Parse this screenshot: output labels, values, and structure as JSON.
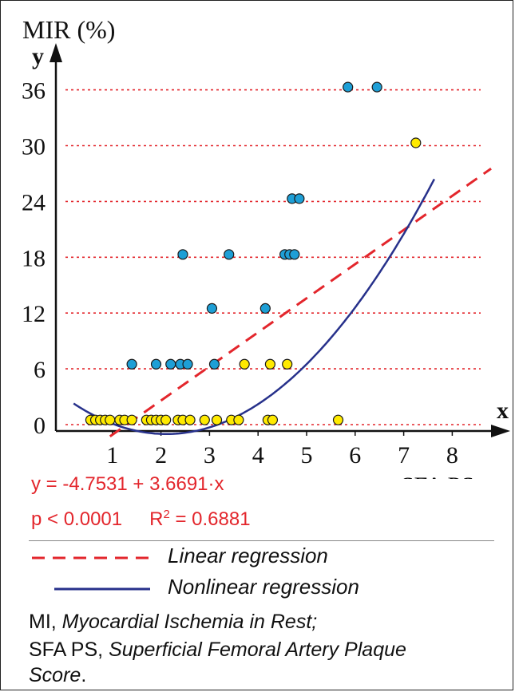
{
  "chart_data": {
    "type": "scatter",
    "y_axis_title": "MIR (%)",
    "y_axis_letter": "y",
    "x_axis_letter": "x",
    "x_axis_title": "SFA PS",
    "xlim": [
      0,
      9
    ],
    "ylim": [
      0,
      40
    ],
    "x_ticks": [
      "1",
      "2",
      "3",
      "4",
      "5",
      "6",
      "7",
      "8"
    ],
    "y_ticks": [
      "0",
      "6",
      "12",
      "18",
      "24",
      "30",
      "36"
    ],
    "gridlines": "dotted horizontal at y ticks",
    "series": [
      {
        "color": "#1e9fd6",
        "marker": "circle",
        "points": [
          [
            1.4,
            6.5
          ],
          [
            1.9,
            6.5
          ],
          [
            2.2,
            6.5
          ],
          [
            2.4,
            6.5
          ],
          [
            2.55,
            6.5
          ],
          [
            3.1,
            6.5
          ],
          [
            2.45,
            18.3
          ],
          [
            3.05,
            12.5
          ],
          [
            3.4,
            18.3
          ],
          [
            4.15,
            12.5
          ],
          [
            4.55,
            18.3
          ],
          [
            4.65,
            18.3
          ],
          [
            4.75,
            18.3
          ],
          [
            4.7,
            24.3
          ],
          [
            4.85,
            24.3
          ],
          [
            5.85,
            36.3
          ],
          [
            6.45,
            36.3
          ]
        ]
      },
      {
        "color": "#ffea00",
        "marker": "circle",
        "points": [
          [
            0.55,
            0.5
          ],
          [
            0.65,
            0.5
          ],
          [
            0.75,
            0.5
          ],
          [
            0.85,
            0.5
          ],
          [
            0.95,
            0.5
          ],
          [
            1.15,
            0.5
          ],
          [
            1.25,
            0.5
          ],
          [
            1.4,
            0.5
          ],
          [
            1.7,
            0.5
          ],
          [
            1.8,
            0.5
          ],
          [
            1.9,
            0.5
          ],
          [
            2.0,
            0.5
          ],
          [
            2.1,
            0.5
          ],
          [
            2.35,
            0.5
          ],
          [
            2.45,
            0.5
          ],
          [
            2.6,
            0.5
          ],
          [
            2.9,
            0.5
          ],
          [
            3.15,
            0.5
          ],
          [
            3.45,
            0.5
          ],
          [
            3.6,
            0.5
          ],
          [
            4.2,
            0.5
          ],
          [
            4.3,
            0.5
          ],
          [
            5.65,
            0.5
          ],
          [
            3.72,
            6.5
          ],
          [
            4.25,
            6.5
          ],
          [
            4.6,
            6.5
          ],
          [
            7.25,
            30.3
          ]
        ]
      }
    ],
    "lines": [
      {
        "name": "Linear regression",
        "style": "dashed",
        "color": "#e3262c",
        "intercept": -4.7531,
        "slope": 3.6691
      },
      {
        "name": "Nonlinear regression",
        "style": "solid",
        "color": "#27318b",
        "quadratic": [
          3.0,
          -3.8,
          0.9
        ]
      }
    ],
    "equation": "y = -4.7531 + 3.6691·x",
    "p_value": "p < 0.0001",
    "r2_prefix": "R",
    "r2_sup": "2",
    "r2_value": " = 0.6881"
  },
  "legend": {
    "linear": "Linear regression",
    "nonlinear": "Nonlinear regression"
  },
  "notes": {
    "line1_abbr": "MI, ",
    "line1_text": "Myocardial Ischemia in Rest;",
    "line2_abbr": "SFA PS, ",
    "line2_text": "Superficial Femoral Artery Plaque",
    "line3_text": "Score",
    "line3_end": "."
  }
}
